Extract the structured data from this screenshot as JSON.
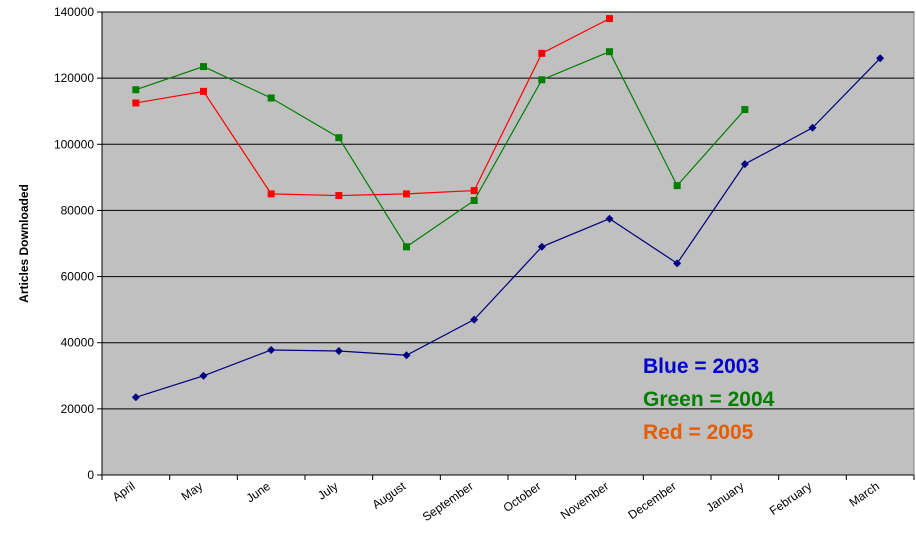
{
  "chart_data": {
    "type": "line",
    "ylabel": "Articles Downloaded",
    "xlabel": "",
    "ylim": [
      0,
      140000
    ],
    "y_ticks": [
      "0",
      "20000",
      "40000",
      "60000",
      "80000",
      "100000",
      "120000",
      "140000"
    ],
    "categories": [
      "April",
      "May",
      "June",
      "July",
      "August",
      "September",
      "October",
      "November",
      "December",
      "January",
      "February",
      "March"
    ],
    "grid": "horizontal",
    "plot_background": "#c0c0c0",
    "series": [
      {
        "color": "#00007f",
        "marker": "diamond",
        "values": [
          23500,
          30000,
          37800,
          37500,
          36200,
          47000,
          69000,
          77500,
          64000,
          94000,
          105000,
          126000
        ]
      },
      {
        "color": "#007f00",
        "marker": "square",
        "values": [
          116500,
          123500,
          114000,
          102000,
          69000,
          83000,
          119500,
          128000,
          87500,
          110500,
          null,
          null
        ]
      },
      {
        "color": "#ff0000",
        "marker": "square",
        "values": [
          112500,
          116000,
          85000,
          84500,
          85000,
          86000,
          127500,
          138000,
          null,
          null,
          null,
          null
        ]
      }
    ],
    "legend_lines": [
      {
        "text": "Blue = 2003",
        "color": "#0000cc"
      },
      {
        "text": "Green =  2004",
        "color": "#007f00"
      },
      {
        "text": "Red = 2005",
        "color": "#e65c00"
      }
    ]
  }
}
